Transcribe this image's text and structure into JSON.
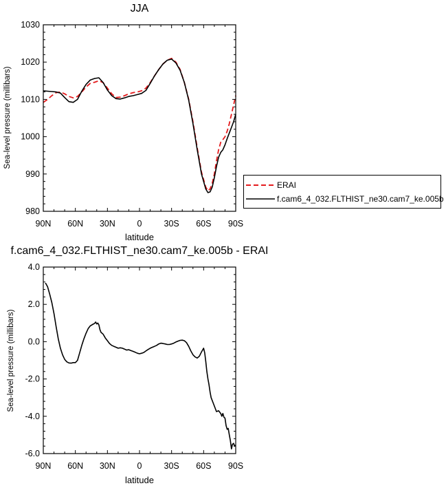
{
  "chart_data": [
    {
      "type": "line",
      "title": "JJA",
      "xlabel": "latitude",
      "ylabel": "Sea-level pressure (millibars)",
      "xlim": [
        90,
        -90
      ],
      "ylim": [
        980,
        1030
      ],
      "x_ticks": [
        90,
        60,
        30,
        0,
        -30,
        -60,
        -90
      ],
      "x_tick_labels": [
        "90N",
        "60N",
        "30N",
        "0",
        "30S",
        "60S",
        "90S"
      ],
      "y_ticks": [
        980,
        990,
        1000,
        1010,
        1020,
        1030
      ],
      "y_tick_labels": [
        "980",
        "990",
        "1000",
        "1010",
        "1020",
        "1030"
      ],
      "legend": "right",
      "series": [
        {
          "name": "ERAI",
          "color": "#e41a1c",
          "dash": "dashed",
          "x": [
            90,
            86,
            82,
            78,
            74,
            70,
            66,
            62,
            58,
            54,
            50,
            46,
            42,
            38,
            34,
            30,
            26,
            22,
            18,
            14,
            10,
            6,
            2,
            -2,
            -6,
            -10,
            -14,
            -18,
            -22,
            -26,
            -30,
            -34,
            -38,
            -42,
            -46,
            -50,
            -54,
            -58,
            -62,
            -64,
            -66,
            -68,
            -70,
            -72,
            -74,
            -76,
            -78,
            -80,
            -82,
            -84,
            -86,
            -88,
            -90
          ],
          "y": [
            1009.2,
            1010.0,
            1011.0,
            1011.8,
            1012.0,
            1011.5,
            1010.8,
            1010.4,
            1010.8,
            1012.0,
            1013.3,
            1014.3,
            1014.6,
            1015.0,
            1014.5,
            1013.0,
            1011.5,
            1010.5,
            1010.6,
            1011.0,
            1011.5,
            1011.8,
            1012.0,
            1012.3,
            1013.0,
            1014.5,
            1016.3,
            1018.0,
            1019.5,
            1020.5,
            1021.0,
            1020.0,
            1018.0,
            1014.5,
            1010.0,
            1004.0,
            997.0,
            990.5,
            986.5,
            985.5,
            986.0,
            987.5,
            990.0,
            993.5,
            996.5,
            998.5,
            999.2,
            1000.0,
            1001.5,
            1003.5,
            1006.0,
            1008.5,
            1011.0
          ]
        },
        {
          "name": "f.cam6_4_032.FLTHIST_ne30.cam7_ke.005b",
          "color": "#000000",
          "dash": "solid",
          "x": [
            90,
            86,
            82,
            78,
            74,
            70,
            66,
            62,
            58,
            54,
            50,
            46,
            42,
            38,
            34,
            30,
            26,
            22,
            18,
            14,
            10,
            6,
            2,
            -2,
            -6,
            -10,
            -14,
            -18,
            -22,
            -26,
            -30,
            -34,
            -38,
            -42,
            -46,
            -50,
            -54,
            -58,
            -62,
            -64,
            -66,
            -68,
            -70,
            -72,
            -74,
            -76,
            -78,
            -80,
            -82,
            -84,
            -86,
            -88,
            -90
          ],
          "y": [
            1012.3,
            1012.2,
            1012.1,
            1012.0,
            1011.7,
            1010.5,
            1009.4,
            1009.2,
            1010.0,
            1012.2,
            1014.0,
            1015.2,
            1015.6,
            1015.8,
            1014.5,
            1012.5,
            1011.0,
            1010.2,
            1010.1,
            1010.4,
            1010.8,
            1011.0,
            1011.3,
            1011.6,
            1012.4,
            1014.3,
            1016.3,
            1018.0,
            1019.5,
            1020.5,
            1020.8,
            1019.8,
            1017.8,
            1014.5,
            1009.8,
            1003.5,
            996.5,
            990.0,
            986.0,
            985.0,
            985.2,
            986.5,
            989.0,
            992.0,
            994.5,
            995.8,
            996.5,
            997.8,
            999.5,
            1001.0,
            1002.5,
            1004.0,
            1006.0
          ]
        }
      ]
    },
    {
      "type": "line",
      "title": "f.cam6_4_032.FLTHIST_ne30.cam7_ke.005b - ERAI",
      "xlabel": "latitude",
      "ylabel": "Sea-level pressure (millibars)",
      "xlim": [
        90,
        -90
      ],
      "ylim": [
        -6.0,
        4.0
      ],
      "x_ticks": [
        90,
        60,
        30,
        0,
        -30,
        -60,
        -90
      ],
      "x_tick_labels": [
        "90N",
        "60N",
        "30N",
        "0",
        "30S",
        "60S",
        "90S"
      ],
      "y_ticks": [
        -6.0,
        -4.0,
        -2.0,
        0.0,
        2.0,
        4.0
      ],
      "y_tick_labels": [
        "-6.0",
        "-4.0",
        "-2.0",
        "0.0",
        "2.0",
        "4.0"
      ],
      "series": [
        {
          "color": "#000000",
          "dash": "solid",
          "x": [
            88,
            86,
            84,
            82,
            80,
            78,
            76,
            74,
            72,
            70,
            68,
            66,
            64,
            62,
            60,
            58,
            56,
            54,
            52,
            50,
            48,
            46,
            44,
            42,
            41,
            40,
            39,
            38,
            37,
            36,
            35,
            34,
            33,
            32,
            30,
            28,
            26,
            24,
            22,
            20,
            18,
            16,
            14,
            12,
            10,
            8,
            6,
            4,
            2,
            0,
            -2,
            -4,
            -6,
            -8,
            -10,
            -12,
            -14,
            -16,
            -18,
            -20,
            -22,
            -24,
            -26,
            -28,
            -30,
            -32,
            -34,
            -36,
            -38,
            -40,
            -42,
            -44,
            -46,
            -48,
            -50,
            -52,
            -54,
            -56,
            -58,
            -60,
            -61,
            -62,
            -63,
            -64,
            -65,
            -66,
            -67,
            -68,
            -70,
            -72,
            -74,
            -76,
            -77,
            -78,
            -79,
            -80,
            -81,
            -82,
            -83,
            -84,
            -85,
            -86,
            -87,
            -88,
            -89,
            -90
          ],
          "y": [
            3.15,
            2.95,
            2.55,
            2.1,
            1.5,
            0.8,
            0.15,
            -0.35,
            -0.7,
            -0.95,
            -1.08,
            -1.14,
            -1.15,
            -1.12,
            -1.12,
            -1.0,
            -0.6,
            -0.2,
            0.15,
            0.45,
            0.7,
            0.85,
            0.92,
            0.98,
            1.05,
            0.95,
            1.0,
            0.9,
            0.65,
            0.5,
            0.45,
            0.4,
            0.3,
            0.2,
            0.05,
            -0.1,
            -0.2,
            -0.25,
            -0.3,
            -0.35,
            -0.33,
            -0.35,
            -0.4,
            -0.45,
            -0.43,
            -0.48,
            -0.52,
            -0.57,
            -0.62,
            -0.65,
            -0.62,
            -0.58,
            -0.5,
            -0.42,
            -0.35,
            -0.3,
            -0.25,
            -0.2,
            -0.12,
            -0.08,
            -0.1,
            -0.12,
            -0.15,
            -0.15,
            -0.12,
            -0.08,
            -0.02,
            0.03,
            0.07,
            0.08,
            0.05,
            -0.05,
            -0.25,
            -0.5,
            -0.7,
            -0.82,
            -0.88,
            -0.78,
            -0.55,
            -0.35,
            -0.6,
            -1.05,
            -1.6,
            -2.0,
            -2.3,
            -2.7,
            -3.0,
            -3.15,
            -3.45,
            -3.75,
            -3.7,
            -3.85,
            -4.0,
            -3.85,
            -4.05,
            -4.1,
            -4.5,
            -4.7,
            -4.65,
            -5.0,
            -5.3,
            -5.75,
            -5.5,
            -5.45,
            -5.6,
            -5.55
          ]
        }
      ]
    }
  ]
}
